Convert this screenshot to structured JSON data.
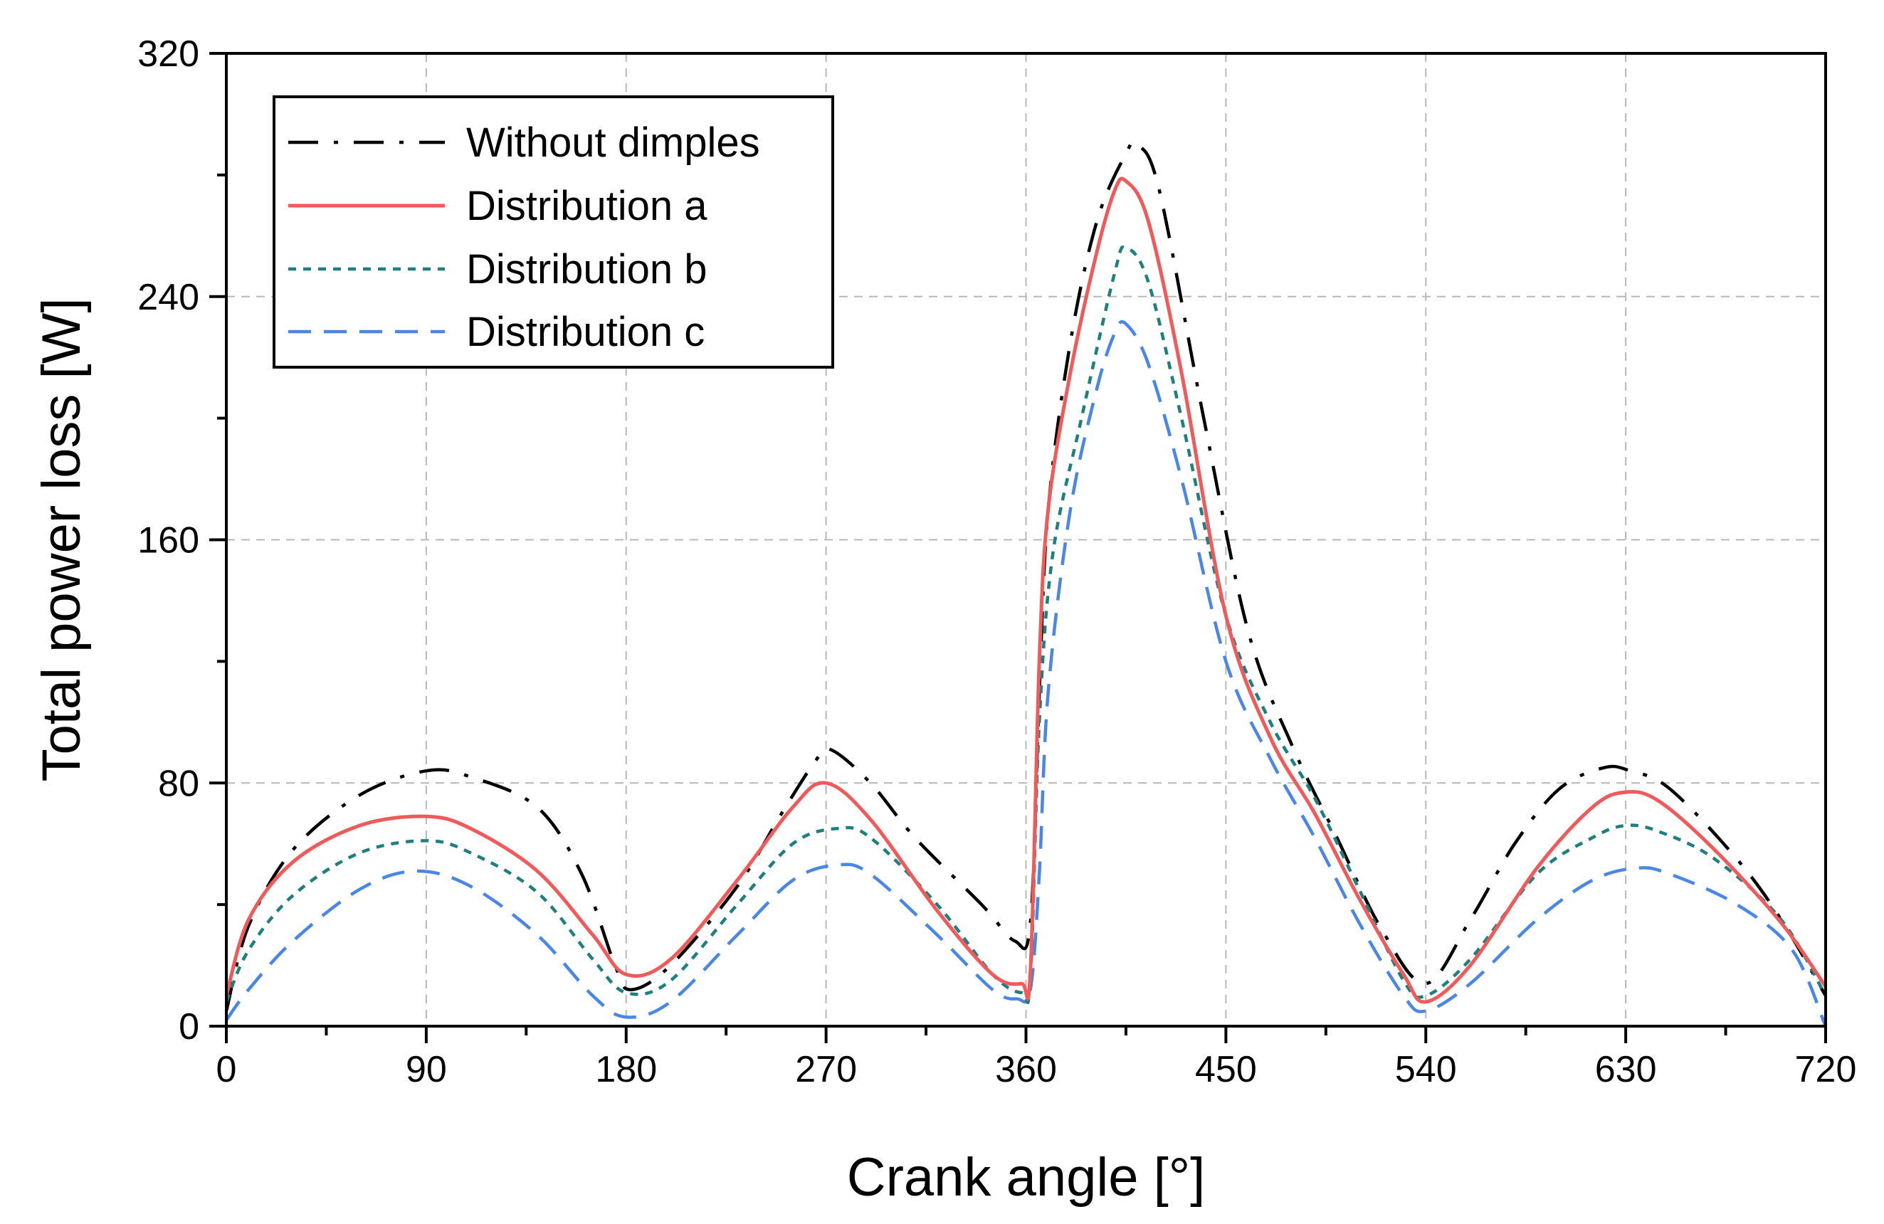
{
  "chart_data": {
    "type": "line",
    "title": "",
    "xlabel": "Crank angle [°]",
    "ylabel": "Total power loss [W]",
    "xlim": [
      0,
      720
    ],
    "ylim": [
      0,
      320
    ],
    "xticks": [
      0,
      90,
      180,
      270,
      360,
      450,
      540,
      630,
      720
    ],
    "yticks": [
      0,
      80,
      160,
      240,
      320
    ],
    "xtick_labels": [
      "0",
      "90",
      "180",
      "270",
      "360",
      "450",
      "540",
      "630",
      "720"
    ],
    "ytick_labels": [
      "0",
      "80",
      "160",
      "240",
      "320"
    ],
    "grid": true,
    "legend_position": "top-left",
    "series": [
      {
        "name": "Without dimples",
        "color": "#000000",
        "style": "dash-dot",
        "points": [
          [
            0,
            5
          ],
          [
            10,
            33
          ],
          [
            30,
            58
          ],
          [
            60,
            76
          ],
          [
            90,
            84
          ],
          [
            110,
            82
          ],
          [
            140,
            72
          ],
          [
            160,
            50
          ],
          [
            175,
            20
          ],
          [
            182,
            12
          ],
          [
            200,
            20
          ],
          [
            230,
            46
          ],
          [
            250,
            70
          ],
          [
            265,
            87
          ],
          [
            272,
            91
          ],
          [
            290,
            80
          ],
          [
            310,
            62
          ],
          [
            340,
            40
          ],
          [
            355,
            28
          ],
          [
            362,
            34
          ],
          [
            366,
            110
          ],
          [
            370,
            170
          ],
          [
            380,
            225
          ],
          [
            392,
            265
          ],
          [
            405,
            287
          ],
          [
            410,
            290
          ],
          [
            420,
            275
          ],
          [
            440,
            200
          ],
          [
            460,
            130
          ],
          [
            480,
            92
          ],
          [
            500,
            62
          ],
          [
            520,
            32
          ],
          [
            540,
            14
          ],
          [
            560,
            35
          ],
          [
            580,
            60
          ],
          [
            600,
            78
          ],
          [
            620,
            85
          ],
          [
            632,
            84
          ],
          [
            650,
            78
          ],
          [
            680,
            55
          ],
          [
            700,
            35
          ],
          [
            720,
            10
          ]
        ]
      },
      {
        "name": "Distribution a",
        "color": "#f05a5a",
        "style": "solid",
        "points": [
          [
            0,
            10
          ],
          [
            10,
            35
          ],
          [
            30,
            54
          ],
          [
            60,
            66
          ],
          [
            90,
            69
          ],
          [
            110,
            65
          ],
          [
            140,
            51
          ],
          [
            165,
            30
          ],
          [
            180,
            17
          ],
          [
            200,
            22
          ],
          [
            230,
            48
          ],
          [
            255,
            72
          ],
          [
            270,
            80
          ],
          [
            290,
            68
          ],
          [
            320,
            38
          ],
          [
            345,
            17
          ],
          [
            358,
            14
          ],
          [
            362,
            18
          ],
          [
            366,
            120
          ],
          [
            370,
            170
          ],
          [
            380,
            215
          ],
          [
            392,
            255
          ],
          [
            400,
            275
          ],
          [
            405,
            278
          ],
          [
            415,
            265
          ],
          [
            430,
            215
          ],
          [
            450,
            135
          ],
          [
            470,
            95
          ],
          [
            490,
            70
          ],
          [
            510,
            42
          ],
          [
            530,
            17
          ],
          [
            540,
            8
          ],
          [
            560,
            20
          ],
          [
            590,
            52
          ],
          [
            615,
            72
          ],
          [
            630,
            77
          ],
          [
            645,
            74
          ],
          [
            670,
            58
          ],
          [
            700,
            34
          ],
          [
            720,
            13
          ]
        ]
      },
      {
        "name": "Distribution b",
        "color": "#1f7f7f",
        "style": "dotted",
        "points": [
          [
            0,
            8
          ],
          [
            10,
            25
          ],
          [
            30,
            43
          ],
          [
            60,
            57
          ],
          [
            90,
            61
          ],
          [
            110,
            57
          ],
          [
            140,
            44
          ],
          [
            165,
            22
          ],
          [
            180,
            11
          ],
          [
            200,
            15
          ],
          [
            230,
            40
          ],
          [
            255,
            60
          ],
          [
            275,
            65
          ],
          [
            290,
            62
          ],
          [
            320,
            40
          ],
          [
            345,
            17
          ],
          [
            358,
            11
          ],
          [
            362,
            16
          ],
          [
            366,
            100
          ],
          [
            372,
            155
          ],
          [
            385,
            200
          ],
          [
            400,
            248
          ],
          [
            405,
            256
          ],
          [
            415,
            245
          ],
          [
            430,
            200
          ],
          [
            450,
            135
          ],
          [
            470,
            100
          ],
          [
            490,
            75
          ],
          [
            510,
            45
          ],
          [
            530,
            15
          ],
          [
            540,
            10
          ],
          [
            560,
            22
          ],
          [
            590,
            50
          ],
          [
            615,
            62
          ],
          [
            630,
            66
          ],
          [
            645,
            64
          ],
          [
            670,
            55
          ],
          [
            700,
            35
          ],
          [
            720,
            10
          ]
        ]
      },
      {
        "name": "Distribution c",
        "color": "#4a86e8",
        "style": "dashed",
        "points": [
          [
            0,
            2
          ],
          [
            10,
            12
          ],
          [
            30,
            28
          ],
          [
            60,
            45
          ],
          [
            85,
            51
          ],
          [
            110,
            46
          ],
          [
            140,
            30
          ],
          [
            165,
            10
          ],
          [
            180,
            3
          ],
          [
            200,
            8
          ],
          [
            230,
            30
          ],
          [
            255,
            48
          ],
          [
            275,
            53
          ],
          [
            290,
            50
          ],
          [
            320,
            30
          ],
          [
            345,
            12
          ],
          [
            356,
            9
          ],
          [
            362,
            12
          ],
          [
            366,
            50
          ],
          [
            370,
            110
          ],
          [
            380,
            170
          ],
          [
            392,
            210
          ],
          [
            400,
            228
          ],
          [
            405,
            231
          ],
          [
            415,
            218
          ],
          [
            430,
            180
          ],
          [
            450,
            120
          ],
          [
            470,
            88
          ],
          [
            490,
            62
          ],
          [
            510,
            34
          ],
          [
            530,
            10
          ],
          [
            540,
            5
          ],
          [
            560,
            14
          ],
          [
            590,
            35
          ],
          [
            615,
            48
          ],
          [
            635,
            52
          ],
          [
            650,
            50
          ],
          [
            680,
            40
          ],
          [
            705,
            25
          ],
          [
            720,
            0
          ]
        ]
      }
    ]
  }
}
